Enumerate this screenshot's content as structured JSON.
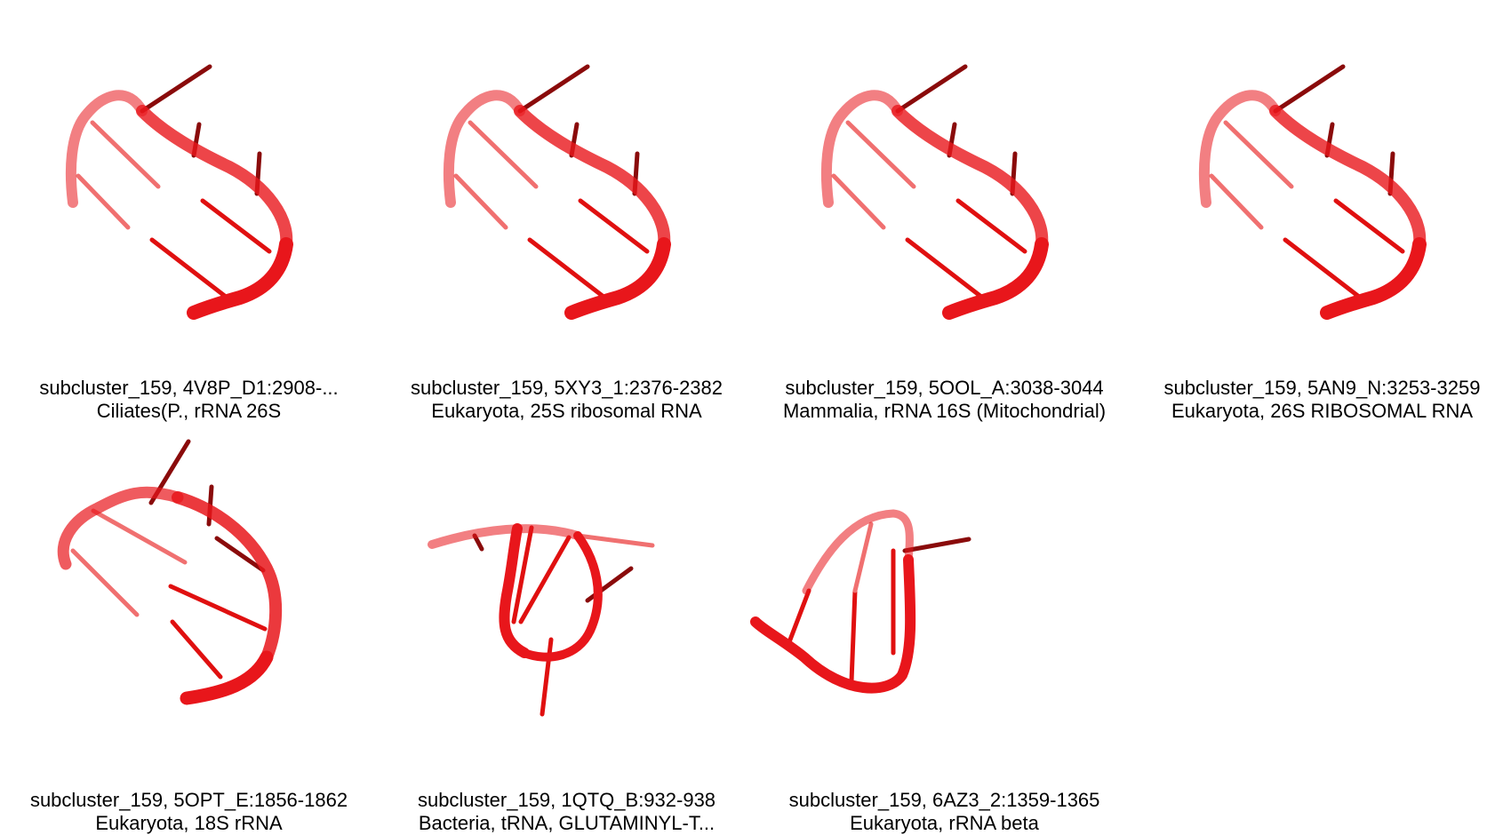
{
  "panels": [
    {
      "label": "subcluster_159, 4V8P_D1:2908-...",
      "subtitle": "Ciliates(P., rRNA 26S",
      "shape": "a"
    },
    {
      "label": "subcluster_159, 5XY3_1:2376-2382",
      "subtitle": "Eukaryota, 25S ribosomal RNA",
      "shape": "a"
    },
    {
      "label": "subcluster_159, 5OOL_A:3038-3044",
      "subtitle": "Mammalia, rRNA 16S (Mitochondrial)",
      "shape": "a"
    },
    {
      "label": "subcluster_159, 5AN9_N:3253-3259",
      "subtitle": "Eukaryota, 26S RIBOSOMAL RNA",
      "shape": "a"
    },
    {
      "label": "subcluster_159, 5OPT_E:1856-1862",
      "subtitle": "Eukaryota, 18S rRNA",
      "shape": "b"
    },
    {
      "label": "subcluster_159, 1QTQ_B:932-938",
      "subtitle": "Bacteria, tRNA, GLUTAMINYL-T...",
      "shape": "c"
    },
    {
      "label": "subcluster_159, 6AZ3_2:1359-1365",
      "subtitle": "Eukaryota, rRNA beta",
      "shape": "d"
    }
  ],
  "colors": {
    "backbone": "#e8161b",
    "backbone_light": "#f07070",
    "stick": "#e01010",
    "stick_dark": "#8a0b0b",
    "text": "#000000"
  }
}
